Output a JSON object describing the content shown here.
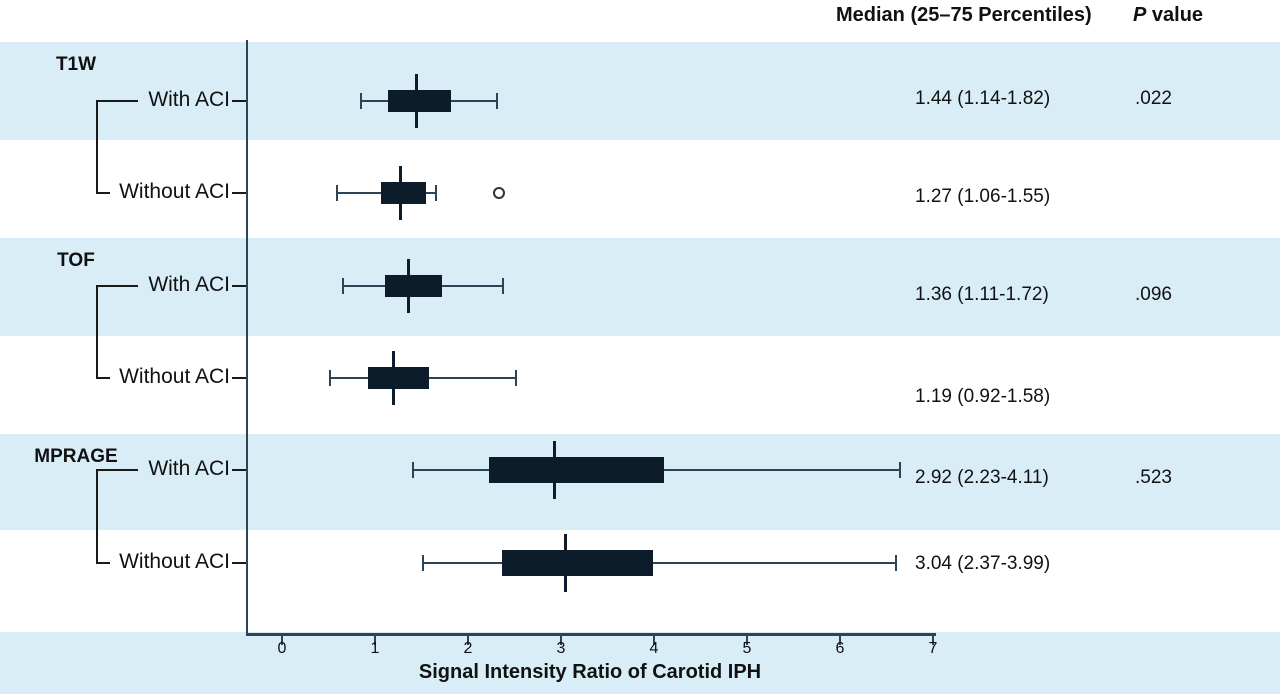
{
  "header": {
    "median_col": "Median (25–75 Percentiles)",
    "p_italic": "P",
    "p_rest": " value"
  },
  "chart_data": {
    "type": "boxplot",
    "orientation": "horizontal",
    "xlabel": "Signal Intensity Ratio of Carotid IPH",
    "xlim": [
      0,
      7
    ],
    "xticks": [
      0,
      1,
      2,
      3,
      4,
      5,
      6,
      7
    ],
    "legend": "none",
    "grid": false,
    "row_banding": "alternating light blue / white, one band per sequence group",
    "groups": [
      {
        "name": "T1W",
        "p_value": ".022",
        "rows": [
          {
            "label": "With ACI",
            "median": 1.44,
            "q1": 1.14,
            "q3": 1.82,
            "whisker_low": 0.85,
            "whisker_high": 2.31,
            "outliers": [],
            "median_text": "1.44 (1.14-1.82)"
          },
          {
            "label": "Without ACI",
            "median": 1.27,
            "q1": 1.06,
            "q3": 1.55,
            "whisker_low": 0.59,
            "whisker_high": 1.66,
            "outliers": [
              2.33
            ],
            "median_text": "1.27 (1.06-1.55)"
          }
        ]
      },
      {
        "name": "TOF",
        "p_value": ".096",
        "rows": [
          {
            "label": "With ACI",
            "median": 1.36,
            "q1": 1.11,
            "q3": 1.72,
            "whisker_low": 0.66,
            "whisker_high": 2.38,
            "outliers": [],
            "median_text": "1.36 (1.11-1.72)"
          },
          {
            "label": "Without ACI",
            "median": 1.19,
            "q1": 0.92,
            "q3": 1.58,
            "whisker_low": 0.52,
            "whisker_high": 2.52,
            "outliers": [],
            "median_text": "1.19 (0.92-1.58)"
          }
        ]
      },
      {
        "name": "MPRAGE",
        "p_value": ".523",
        "rows": [
          {
            "label": "With ACI",
            "median": 2.92,
            "q1": 2.23,
            "q3": 4.11,
            "whisker_low": 1.41,
            "whisker_high": 6.65,
            "outliers": [],
            "median_text": "2.92 (2.23-4.11)"
          },
          {
            "label": "Without ACI",
            "median": 3.04,
            "q1": 2.37,
            "q3": 3.99,
            "whisker_low": 1.52,
            "whisker_high": 6.6,
            "outliers": [],
            "median_text": "3.04 (2.37-3.99)"
          }
        ]
      }
    ]
  },
  "colors": {
    "band": "#d9edf7",
    "box": "#0d1c2a",
    "axis": "#2b4457",
    "bracket": "#1a1a1a",
    "outlier": "#333333",
    "text": "#1a1a1a"
  }
}
